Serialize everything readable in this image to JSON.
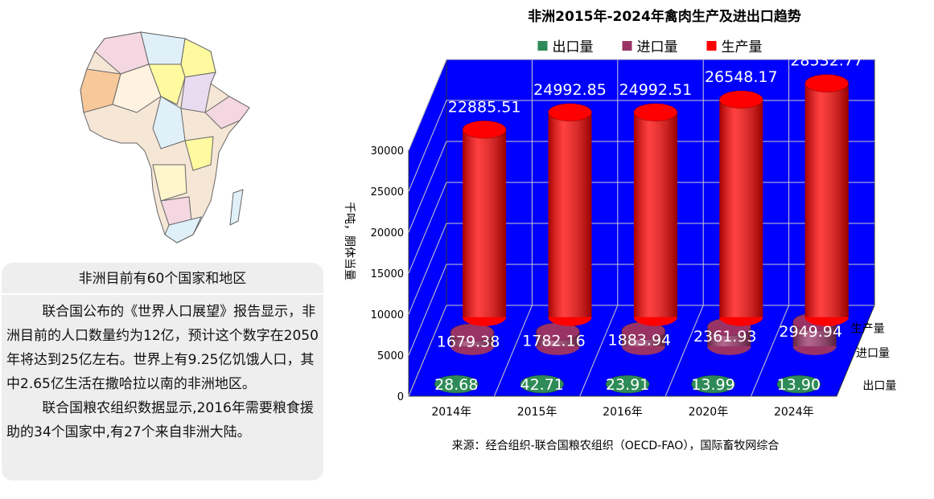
{
  "panel": {
    "heading": "非洲目前有60个国家和地区",
    "paragraphs": [
      "联合国公布的《世界人口展望》报告显示，非洲目前的人口数量约为12亿，预计这个数字在2050年将达到25亿左右。世界上有9.25亿饥饿人口，其中2.65亿生活在撒哈拉以南的非洲地区。",
      "联合国粮农组织数据显示,2016年需要粮食援助的34个国家中,有27个来自非洲大陆。"
    ]
  },
  "chart_data": {
    "type": "bar3d",
    "title": "非洲2015年-2024年禽肉生产及进出口趋势",
    "y_label": "千吨，胴体当量",
    "source": "来源：经合组织-联合国粮农组织（OECD-FAO），国际畜牧网综合",
    "categories": [
      "2014年",
      "2015年",
      "2016年",
      "2020年",
      "2024年"
    ],
    "ylim": [
      0,
      30000
    ],
    "yticks": [
      0,
      5000,
      10000,
      15000,
      20000,
      25000,
      30000
    ],
    "grid": true,
    "wall_color": "#0000ff",
    "series": [
      {
        "name": "出口量",
        "color": "#2e8b57",
        "values": [
          28.68,
          42.71,
          23.91,
          13.99,
          13.9
        ],
        "value_labels": [
          "28.68",
          "42.71",
          "23.91",
          "13.99",
          "13.90"
        ]
      },
      {
        "name": "进口量",
        "color": "#993366",
        "values": [
          1679.38,
          1782.16,
          1883.94,
          2361.93,
          2949.94
        ]
      },
      {
        "name": "生产量",
        "color": "#ff0000",
        "values": [
          22885.51,
          24992.85,
          24992.51,
          26548.17,
          28532.77
        ]
      }
    ]
  }
}
